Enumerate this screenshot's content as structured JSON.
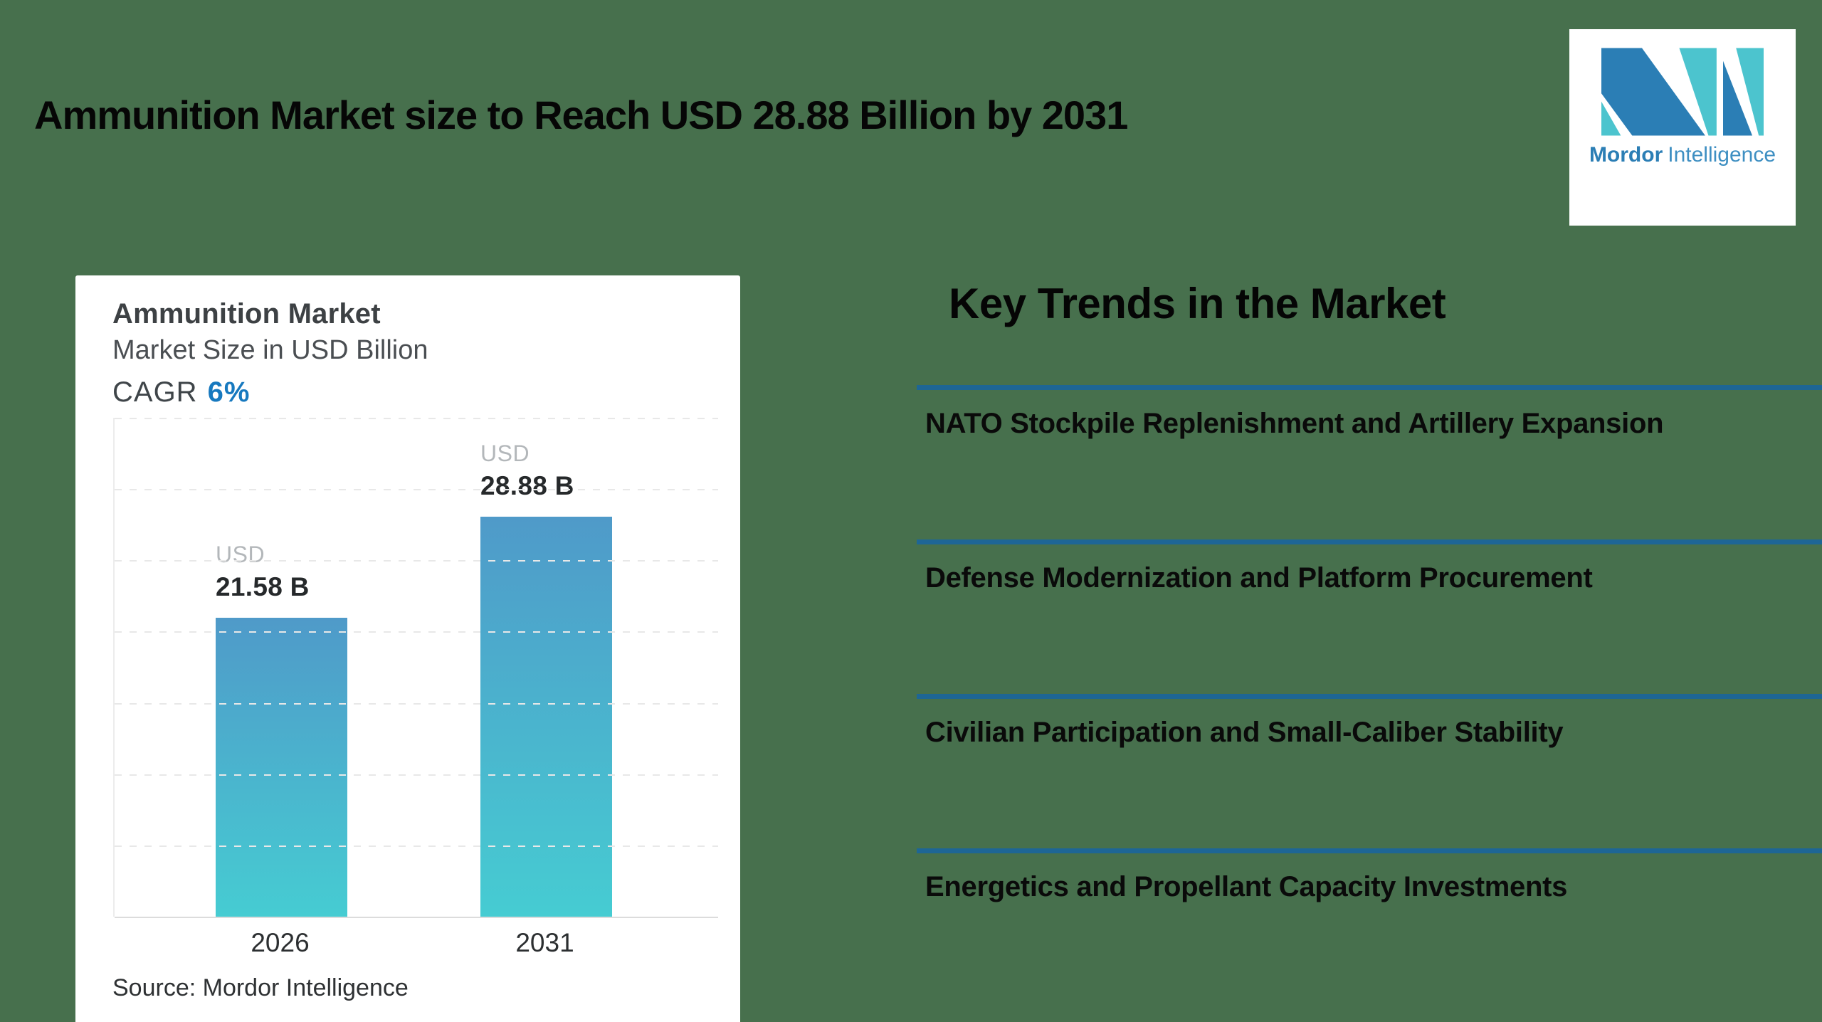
{
  "background": "#47704d",
  "header": {
    "title": "Ammunition Market size to Reach USD 28.88 Billion by 2031"
  },
  "logo": {
    "brand_bold": "Mordor",
    "brand_regular": "Intelligence",
    "blue": "#2b7eb5",
    "teal": "#4cc4ce"
  },
  "chart_card": {
    "title": "Ammunition Market",
    "subtitle": "Market Size in USD Billion",
    "cagr_label": "CAGR",
    "cagr_value": "6%",
    "cagr_accent_color": "#1779bf",
    "source": "Source: Mordor Intelligence"
  },
  "chart_data": {
    "type": "bar",
    "title": "Ammunition Market",
    "subtitle": "Market Size in USD Billion",
    "categories": [
      "2026",
      "2031"
    ],
    "values": [
      21.58,
      28.88
    ],
    "labels": [
      {
        "prefix": "USD",
        "value": "21.58 B"
      },
      {
        "prefix": "USD",
        "value": "28.88 B"
      }
    ],
    "cagr": "6%",
    "ylim": [
      0,
      36
    ],
    "grid": "horizontal-dashed",
    "grid_divisions": 7,
    "legend": "none",
    "bar_gradient": [
      "#4f9ac9",
      "#46ccd2"
    ],
    "source": "Source: Mordor Intelligence"
  },
  "key_trends": {
    "heading": "Key Trends in the Market",
    "divider_color": "#1e6695",
    "items": [
      "NATO Stockpile Replenishment and Artillery Expansion",
      "Defense Modernization and Platform Procurement",
      "Civilian Participation and Small-Caliber Stability",
      "Energetics and Propellant Capacity Investments"
    ]
  }
}
